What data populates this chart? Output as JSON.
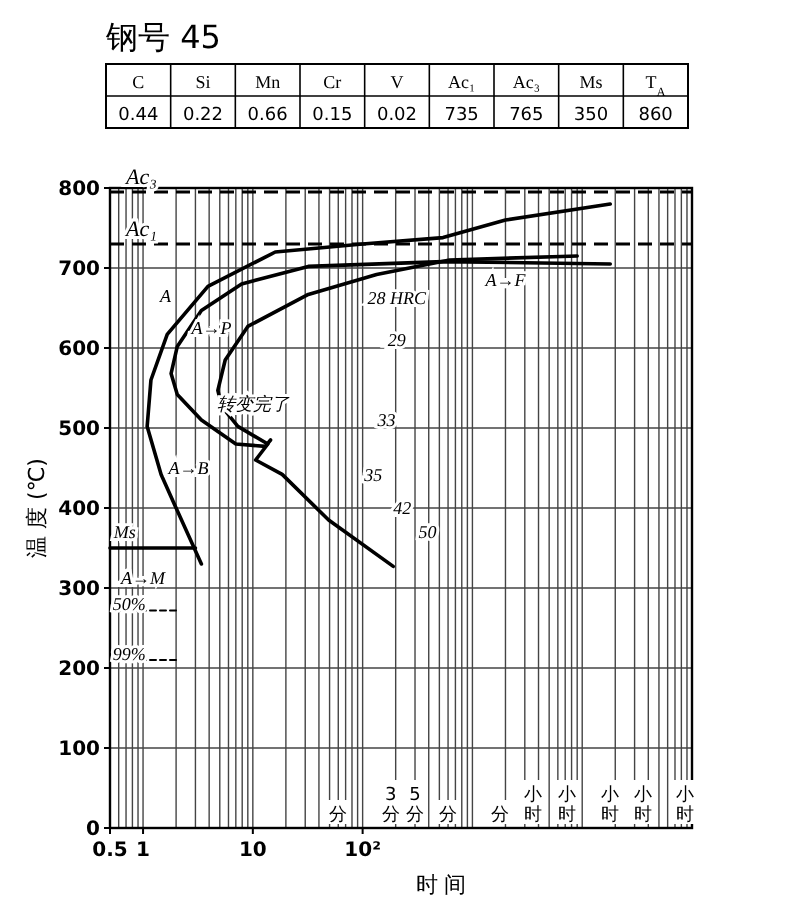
{
  "chart_data": [
    {
      "type": "other",
      "title": "钢号 45",
      "categories": [
        "C",
        "Si",
        "Mn",
        "Cr",
        "V",
        "Ac₁",
        "Ac₃",
        "Ms",
        "T$_{A}$"
      ],
      "annotations": [
        "0.44",
        "0.22",
        "0.66",
        "0.15",
        "0.02",
        "735",
        "765",
        "350",
        "860"
      ]
    },
    {
      "type": "line",
      "xlabel": "时 间",
      "ylabel": "温 度 (℃)",
      "log": "x",
      "xlim": [
        0.5,
        100000
      ],
      "ylim": [
        0,
        800
      ],
      "xticks": [
        0.5,
        1,
        10,
        {
          "value": 100,
          "label": "10²"
        }
      ],
      "yticks": [
        0,
        100,
        200,
        300,
        400,
        500,
        600,
        700,
        800
      ],
      "grid": true,
      "marker": "none",
      "line_style": "solid",
      "series": [
        {
          "color": "#000000",
          "x": [
            18000,
            2000,
            540,
            100,
            16,
            3.9,
            1.66,
            1.18,
            1.09,
            1.46,
            1.97,
            3.4
          ],
          "values": [
            780,
            760,
            738,
            730,
            720,
            677,
            617,
            560,
            502,
            442,
            402,
            330
          ]
        },
        {
          "color": "#000000",
          "x": [
            18000,
            540,
            32,
            7.9,
            3.4,
            2.05,
            1.8,
            2.05,
            3.4,
            7,
            13,
            14.5
          ],
          "values": [
            705,
            708,
            702,
            680,
            647,
            602,
            568,
            542,
            510,
            480,
            477,
            485
          ]
        },
        {
          "color": "#000000",
          "x": [
            9000,
            620,
            134,
            32,
            9,
            5.6,
            4.8,
            5.2,
            7.3,
            13.7,
            10.6,
            18.5,
            49,
            190
          ],
          "values": [
            715,
            710,
            692,
            667,
            627,
            585,
            547,
            527,
            502,
            480,
            460,
            442,
            385,
            327
          ]
        },
        {
          "color": "#000000",
          "x": [
            0.5,
            3
          ],
          "values": [
            350,
            350
          ]
        },
        {
          "color": "#000000",
          "line_style": "dashed",
          "x": [
            0.5,
            2
          ],
          "values": [
            272,
            272
          ]
        },
        {
          "color": "#000000",
          "line_style": "dashed",
          "x": [
            0.5,
            2
          ],
          "values": [
            210,
            210
          ]
        }
      ],
      "ref_lines": [
        {
          "axis": "y",
          "value": 795,
          "label": "Ac₃",
          "line_style": "dashed",
          "color": "#000000"
        },
        {
          "axis": "y",
          "value": 730,
          "label": "Ac₁",
          "line_style": "dashed",
          "color": "#000000"
        }
      ],
      "annotations": [
        "A",
        "A→P",
        "A→F",
        "A→B",
        "转变完了",
        "Ms",
        "A→M",
        "50%",
        "99%",
        "28 HRC",
        "29",
        "33",
        "35",
        "42",
        "50",
        "分",
        "3分",
        "5分",
        "分",
        "分",
        "小时",
        "小时",
        "小时",
        "小时",
        "小时"
      ]
    }
  ]
}
